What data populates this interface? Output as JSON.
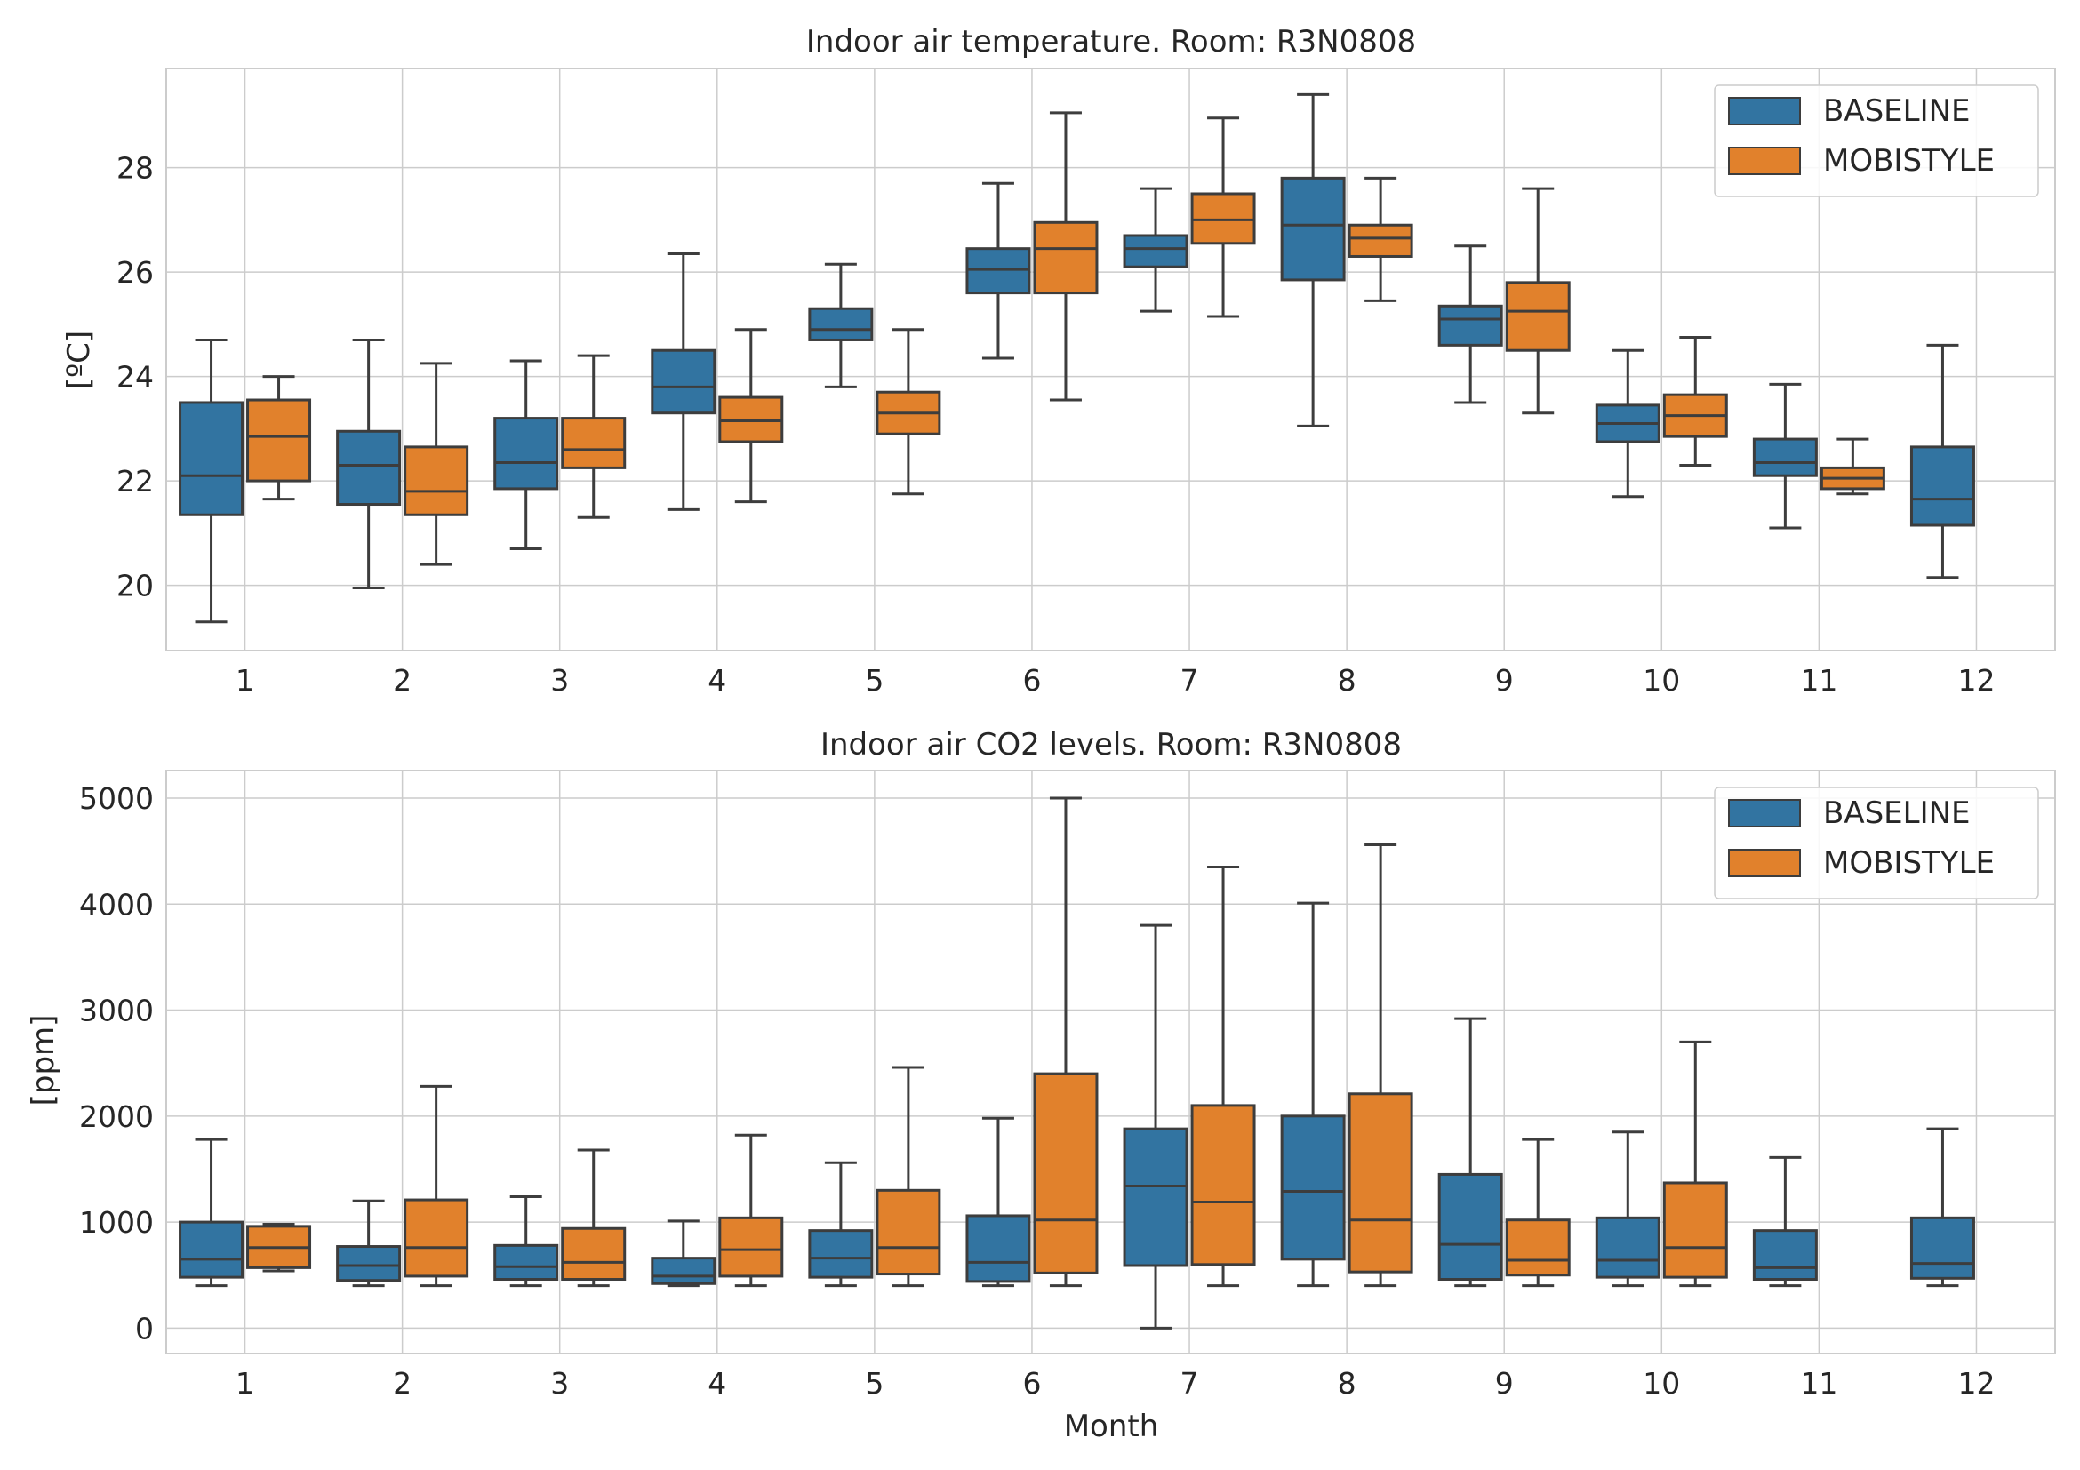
{
  "colors": {
    "BASELINE": "#3274a1",
    "MOBISTYLE": "#e1812c",
    "edge": "#3d3d3d",
    "grid": "#cccccc",
    "text": "#262626"
  },
  "chart_data": [
    {
      "type": "box",
      "title": "Indoor air temperature. Room: R3N0808",
      "xlabel": "",
      "ylabel": "[ºC]",
      "ylim": [
        18.75,
        29.9
      ],
      "yticks": [
        20,
        22,
        24,
        26,
        28
      ],
      "categories": [
        "1",
        "2",
        "3",
        "4",
        "5",
        "6",
        "7",
        "8",
        "9",
        "10",
        "11",
        "12"
      ],
      "legend_position": "top-right",
      "grid": true,
      "series": [
        {
          "name": "BASELINE",
          "boxes": [
            {
              "min": 19.3,
              "q1": 21.35,
              "median": 22.1,
              "q3": 23.5,
              "max": 24.7
            },
            {
              "min": 19.95,
              "q1": 21.55,
              "median": 22.3,
              "q3": 22.95,
              "max": 24.7
            },
            {
              "min": 20.7,
              "q1": 21.85,
              "median": 22.35,
              "q3": 23.2,
              "max": 24.3
            },
            {
              "min": 21.45,
              "q1": 23.3,
              "median": 23.8,
              "q3": 24.5,
              "max": 26.35
            },
            {
              "min": 23.8,
              "q1": 24.7,
              "median": 24.9,
              "q3": 25.3,
              "max": 26.15
            },
            {
              "min": 24.35,
              "q1": 25.6,
              "median": 26.05,
              "q3": 26.45,
              "max": 27.7
            },
            {
              "min": 25.25,
              "q1": 26.1,
              "median": 26.45,
              "q3": 26.7,
              "max": 27.6
            },
            {
              "min": 23.05,
              "q1": 25.85,
              "median": 26.9,
              "q3": 27.8,
              "max": 29.4
            },
            {
              "min": 23.5,
              "q1": 24.6,
              "median": 25.1,
              "q3": 25.35,
              "max": 26.5
            },
            {
              "min": 21.7,
              "q1": 22.75,
              "median": 23.1,
              "q3": 23.45,
              "max": 24.5
            },
            {
              "min": 21.1,
              "q1": 22.1,
              "median": 22.35,
              "q3": 22.8,
              "max": 23.85
            },
            {
              "min": 20.15,
              "q1": 21.15,
              "median": 21.65,
              "q3": 22.65,
              "max": 24.6
            }
          ]
        },
        {
          "name": "MOBISTYLE",
          "boxes": [
            {
              "min": 21.65,
              "q1": 22.0,
              "median": 22.85,
              "q3": 23.55,
              "max": 24.0
            },
            {
              "min": 20.4,
              "q1": 21.35,
              "median": 21.8,
              "q3": 22.65,
              "max": 24.25
            },
            {
              "min": 21.3,
              "q1": 22.25,
              "median": 22.6,
              "q3": 23.2,
              "max": 24.4
            },
            {
              "min": 21.6,
              "q1": 22.75,
              "median": 23.15,
              "q3": 23.6,
              "max": 24.9
            },
            {
              "min": 21.75,
              "q1": 22.9,
              "median": 23.3,
              "q3": 23.7,
              "max": 24.9
            },
            {
              "min": 23.55,
              "q1": 25.6,
              "median": 26.45,
              "q3": 26.95,
              "max": 29.05
            },
            {
              "min": 25.15,
              "q1": 26.55,
              "median": 27.0,
              "q3": 27.5,
              "max": 28.95
            },
            {
              "min": 25.45,
              "q1": 26.3,
              "median": 26.65,
              "q3": 26.9,
              "max": 27.8
            },
            {
              "min": 23.3,
              "q1": 24.5,
              "median": 25.25,
              "q3": 25.8,
              "max": 27.6
            },
            {
              "min": 22.3,
              "q1": 22.85,
              "median": 23.25,
              "q3": 23.65,
              "max": 24.75
            },
            {
              "min": 21.75,
              "q1": 21.85,
              "median": 22.05,
              "q3": 22.25,
              "max": 22.8
            },
            null
          ]
        }
      ]
    },
    {
      "type": "box",
      "title": "Indoor air CO2 levels. Room: R3N0808",
      "xlabel": "Month",
      "ylabel": "[ppm]",
      "ylim": [
        -240,
        5260
      ],
      "yticks": [
        0,
        1000,
        2000,
        3000,
        4000,
        5000
      ],
      "categories": [
        "1",
        "2",
        "3",
        "4",
        "5",
        "6",
        "7",
        "8",
        "9",
        "10",
        "11",
        "12"
      ],
      "legend_position": "top-right",
      "grid": true,
      "series": [
        {
          "name": "BASELINE",
          "boxes": [
            {
              "min": 400,
              "q1": 480,
              "median": 650,
              "q3": 1000,
              "max": 1780
            },
            {
              "min": 400,
              "q1": 450,
              "median": 590,
              "q3": 770,
              "max": 1200
            },
            {
              "min": 400,
              "q1": 460,
              "median": 580,
              "q3": 780,
              "max": 1240
            },
            {
              "min": 400,
              "q1": 420,
              "median": 490,
              "q3": 660,
              "max": 1010
            },
            {
              "min": 400,
              "q1": 480,
              "median": 660,
              "q3": 920,
              "max": 1560
            },
            {
              "min": 400,
              "q1": 440,
              "median": 620,
              "q3": 1060,
              "max": 1980
            },
            {
              "min": 0,
              "q1": 590,
              "median": 1340,
              "q3": 1880,
              "max": 3800
            },
            {
              "min": 400,
              "q1": 650,
              "median": 1290,
              "q3": 2000,
              "max": 4010
            },
            {
              "min": 400,
              "q1": 460,
              "median": 790,
              "q3": 1450,
              "max": 2920
            },
            {
              "min": 400,
              "q1": 480,
              "median": 640,
              "q3": 1040,
              "max": 1850
            },
            {
              "min": 400,
              "q1": 460,
              "median": 570,
              "q3": 920,
              "max": 1610
            },
            {
              "min": 400,
              "q1": 470,
              "median": 610,
              "q3": 1040,
              "max": 1880
            }
          ]
        },
        {
          "name": "MOBISTYLE",
          "boxes": [
            {
              "min": 540,
              "q1": 570,
              "median": 760,
              "q3": 960,
              "max": 980
            },
            {
              "min": 400,
              "q1": 490,
              "median": 760,
              "q3": 1210,
              "max": 2280
            },
            {
              "min": 400,
              "q1": 460,
              "median": 620,
              "q3": 940,
              "max": 1680
            },
            {
              "min": 400,
              "q1": 490,
              "median": 740,
              "q3": 1040,
              "max": 1820
            },
            {
              "min": 400,
              "q1": 510,
              "median": 760,
              "q3": 1300,
              "max": 2460
            },
            {
              "min": 400,
              "q1": 520,
              "median": 1020,
              "q3": 2400,
              "max": 5000
            },
            {
              "min": 400,
              "q1": 600,
              "median": 1190,
              "q3": 2100,
              "max": 4350
            },
            {
              "min": 400,
              "q1": 530,
              "median": 1020,
              "q3": 2210,
              "max": 4560
            },
            {
              "min": 400,
              "q1": 500,
              "median": 640,
              "q3": 1020,
              "max": 1780
            },
            {
              "min": 400,
              "q1": 480,
              "median": 760,
              "q3": 1370,
              "max": 2700
            },
            null,
            null
          ]
        }
      ]
    }
  ]
}
